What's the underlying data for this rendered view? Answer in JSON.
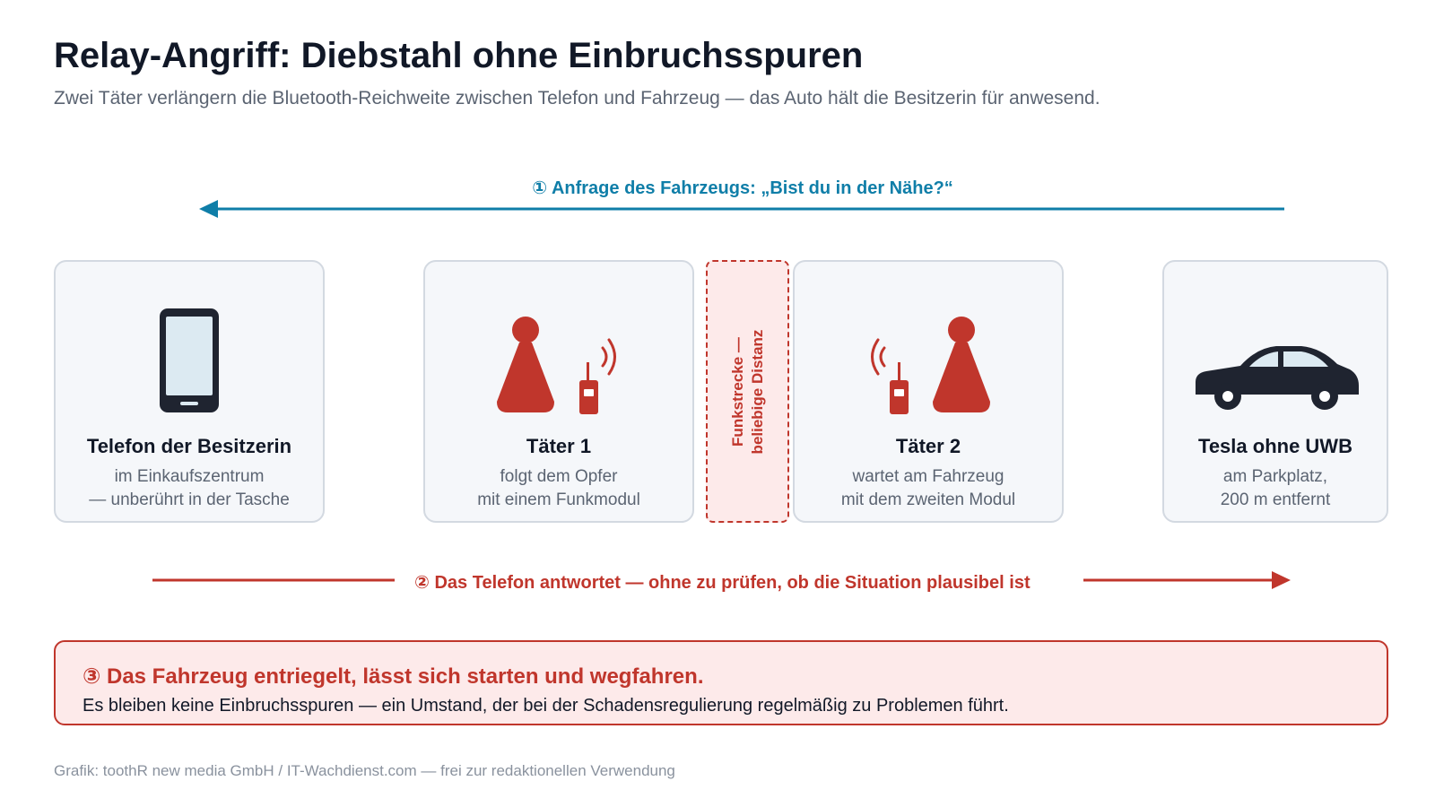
{
  "header": {
    "title": "Relay-Angriff: Diebstahl ohne Einbruchsspuren",
    "subtitle": "Zwei Täter verlängern die Bluetooth-Reichweite zwischen Telefon und Fahrzeug — das Auto hält die Besitzerin für anwesend."
  },
  "flows": {
    "request": {
      "label": "① Anfrage des Fahrzeugs: „Bist du in der Nähe?“",
      "color": "#0f7ea8"
    },
    "response": {
      "label": "② Das Telefon antwortet — ohne zu prüfen, ob die Situation plausibel ist",
      "color": "#c0362c"
    }
  },
  "nodes": [
    {
      "icon": "smartphone-icon",
      "title": "Telefon der Besitzerin",
      "line1": "im Einkaufszentrum",
      "line2": "— unberührt in der Tasche"
    },
    {
      "icon": "attacker-with-radio-icon",
      "title": "Täter 1",
      "line1": "folgt dem Opfer",
      "line2": "mit einem Funkmodul"
    },
    {
      "icon": "attacker-with-radio-icon",
      "title": "Täter 2",
      "line1": "wartet am Fahrzeug",
      "line2": "mit dem zweiten Modul"
    },
    {
      "icon": "car-icon",
      "title": "Tesla ohne UWB",
      "line1": "am Parkplatz,",
      "line2": "200 m entfernt"
    }
  ],
  "relay": {
    "line1": "Funkstrecke —",
    "line2": "beliebige Distanz"
  },
  "result": {
    "title": "③ Das Fahrzeug entriegelt, lässt sich starten und wegfahren.",
    "text": "Es bleiben keine Einbruchsspuren — ein Umstand, der bei der Schadensregulierung regelmäßig zu Problemen führt."
  },
  "footer": {
    "credit": "Grafik: toothR new media GmbH / IT-Wachdienst.com — frei zur redaktionellen Verwendung"
  },
  "colors": {
    "accent_blue": "#0f7ea8",
    "accent_red": "#c0362c",
    "dark": "#1f2430",
    "card_bg": "#f5f7fa",
    "card_border": "#d3d9e1"
  }
}
